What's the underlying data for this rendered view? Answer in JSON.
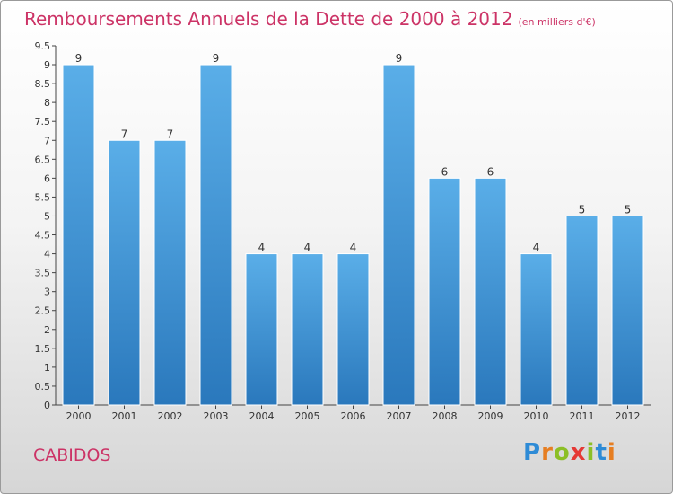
{
  "chart_data": {
    "type": "bar",
    "title": "Remboursements Annuels de la Dette de 2000 à 2012",
    "unit_label": "(en milliers d'€)",
    "categories": [
      "2000",
      "2001",
      "2002",
      "2003",
      "2004",
      "2005",
      "2006",
      "2007",
      "2008",
      "2009",
      "2010",
      "2011",
      "2012"
    ],
    "values": [
      9,
      7,
      7,
      9,
      4,
      4,
      4,
      9,
      6,
      6,
      4,
      5,
      5
    ],
    "data_labels": [
      "9",
      "7",
      "7",
      "9",
      "4",
      "4",
      "4",
      "9",
      "6",
      "6",
      "4",
      "5",
      "5"
    ],
    "ylim": [
      0,
      9.5
    ],
    "yticks": [
      0,
      0.5,
      1,
      1.5,
      2,
      2.5,
      3,
      3.5,
      4,
      4.5,
      5,
      5.5,
      6,
      6.5,
      7,
      7.5,
      8,
      8.5,
      9,
      9.5
    ],
    "ytick_labels": [
      "0",
      "0.5",
      "1",
      "1.5",
      "2",
      "2.5",
      "3",
      "3.5",
      "4",
      "4.5",
      "5",
      "5.5",
      "6",
      "6.5",
      "7",
      "7.5",
      "8",
      "8.5",
      "9",
      "9.5"
    ],
    "grid": false,
    "bar_color": "#3a8fd6",
    "title_color": "#cc3366"
  },
  "commune": "CABIDOS",
  "logo": {
    "text": "Proxiti",
    "letters": [
      "P",
      "r",
      "o",
      "x",
      "i",
      "t",
      "i"
    ]
  }
}
